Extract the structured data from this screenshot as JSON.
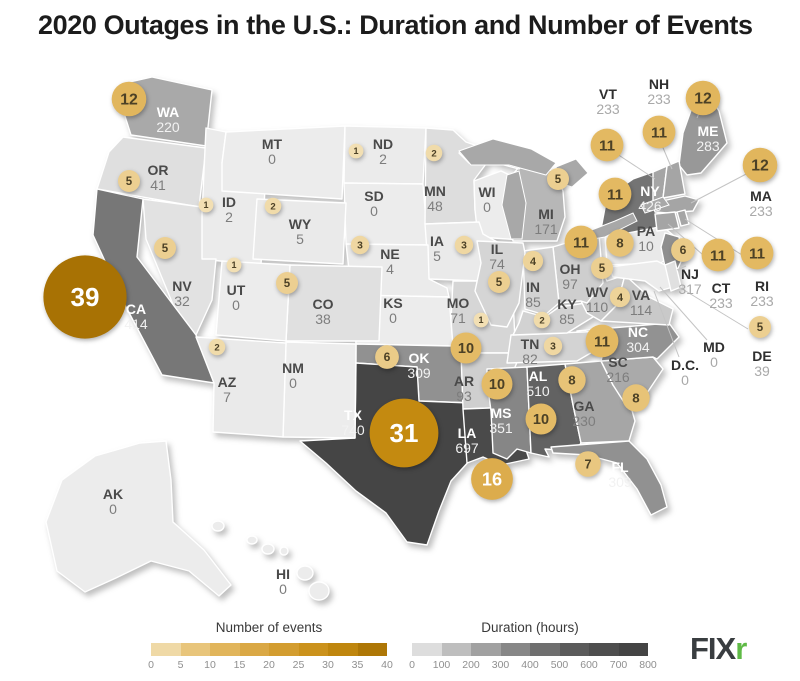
{
  "title": "2020 Outages in the U.S.: Duration and Number of Events",
  "logo": {
    "text_dark": "FIX",
    "text_green": "r",
    "green_color": "#5fba46",
    "dark_color": "#393d40"
  },
  "legends": {
    "events": {
      "title": "Number of events",
      "ticks": [
        "0",
        "5",
        "10",
        "15",
        "20",
        "25",
        "30",
        "35",
        "40"
      ],
      "max": 40
    },
    "duration": {
      "title": "Duration (hours)",
      "ticks": [
        "0",
        "100",
        "200",
        "300",
        "400",
        "500",
        "600",
        "700",
        "800"
      ],
      "max": 800
    }
  },
  "palette": {
    "background": "#ffffff",
    "title_color": "#1c1c1c",
    "lake": "#a8a8a8",
    "leader_line": "#c4c4c4",
    "label_abbr": {
      "dark": "#4a4a4a",
      "light": "#ffffff",
      "outside": "#2f2f2f"
    },
    "label_dur": {
      "dark": "#7d7d7d",
      "light": "#f2f2f2",
      "outside": "#a9a9a9"
    },
    "bubble_text_dark": "#4c4126",
    "bubble_text_light": "#ffffff",
    "duration_anchors": [
      [
        0,
        "#ececec"
      ],
      [
        100,
        "#cdcdcd"
      ],
      [
        200,
        "#aeaeae"
      ],
      [
        300,
        "#939393"
      ],
      [
        400,
        "#7a7a7a"
      ],
      [
        500,
        "#646464"
      ],
      [
        600,
        "#525252"
      ],
      [
        700,
        "#4a4a4a"
      ],
      [
        800,
        "#3e3e3e"
      ]
    ],
    "events_anchors": [
      [
        0,
        "#f3e3bb"
      ],
      [
        10,
        "#e4bb66"
      ],
      [
        20,
        "#d7a23a"
      ],
      [
        30,
        "#c78d12"
      ],
      [
        40,
        "#a56f02"
      ]
    ]
  },
  "chart_data": {
    "type": "choropleth-bubble-map",
    "region": "United States",
    "title": "2020 Outages in the U.S.: Duration and Number of Events",
    "bubble_variable": "Number of events",
    "fill_variable": "Duration (hours)",
    "events_axis_range": [
      0,
      40
    ],
    "duration_axis_range": [
      0,
      800
    ],
    "states": [
      {
        "id": "WA",
        "abbr": "WA",
        "duration_hours": 220,
        "events": 12,
        "label": [
          168,
          112
        ],
        "bubble": [
          129,
          99
        ],
        "text": "light"
      },
      {
        "id": "OR",
        "abbr": "OR",
        "duration_hours": 41,
        "events": 5,
        "label": [
          158,
          170
        ],
        "bubble": [
          129,
          181
        ],
        "text": "dark"
      },
      {
        "id": "CA",
        "abbr": "CA",
        "duration_hours": 414,
        "events": 39,
        "label": [
          136,
          309
        ],
        "bubble": [
          85,
          297
        ],
        "text": "light"
      },
      {
        "id": "NV",
        "abbr": "NV",
        "duration_hours": 32,
        "events": 5,
        "label": [
          182,
          286
        ],
        "bubble": [
          165,
          248
        ],
        "text": "dark"
      },
      {
        "id": "ID",
        "abbr": "ID",
        "duration_hours": 2,
        "events": 1,
        "label": [
          229,
          202
        ],
        "bubble": [
          206,
          205
        ],
        "text": "dark"
      },
      {
        "id": "MT",
        "abbr": "MT",
        "duration_hours": 0,
        "events": null,
        "label": [
          272,
          144
        ],
        "bubble": null,
        "text": "dark"
      },
      {
        "id": "WY",
        "abbr": "WY",
        "duration_hours": 5,
        "events": 2,
        "label": [
          300,
          224
        ],
        "bubble": [
          273,
          206
        ],
        "text": "dark"
      },
      {
        "id": "UT",
        "abbr": "UT",
        "duration_hours": 0,
        "events": 1,
        "label": [
          236,
          290
        ],
        "bubble": [
          234,
          265
        ],
        "text": "dark"
      },
      {
        "id": "CO",
        "abbr": "CO",
        "duration_hours": 38,
        "events": 5,
        "label": [
          323,
          304
        ],
        "bubble": [
          287,
          283
        ],
        "text": "dark"
      },
      {
        "id": "AZ",
        "abbr": "AZ",
        "duration_hours": 7,
        "events": 2,
        "label": [
          227,
          382
        ],
        "bubble": [
          217,
          347
        ],
        "text": "dark"
      },
      {
        "id": "NM",
        "abbr": "NM",
        "duration_hours": 0,
        "events": null,
        "label": [
          293,
          368
        ],
        "bubble": null,
        "text": "dark"
      },
      {
        "id": "ND",
        "abbr": "ND",
        "duration_hours": 2,
        "events": 1,
        "label": [
          383,
          144
        ],
        "bubble": [
          356,
          151
        ],
        "text": "dark"
      },
      {
        "id": "SD",
        "abbr": "SD",
        "duration_hours": 0,
        "events": null,
        "label": [
          374,
          196
        ],
        "bubble": null,
        "text": "dark"
      },
      {
        "id": "NE",
        "abbr": "NE",
        "duration_hours": 4,
        "events": 3,
        "label": [
          390,
          254
        ],
        "bubble": [
          360,
          245
        ],
        "text": "dark"
      },
      {
        "id": "KS",
        "abbr": "KS",
        "duration_hours": 0,
        "events": null,
        "label": [
          393,
          303
        ],
        "bubble": null,
        "text": "dark"
      },
      {
        "id": "OK",
        "abbr": "OK",
        "duration_hours": 309,
        "events": 6,
        "label": [
          419,
          358
        ],
        "bubble": [
          387,
          357
        ],
        "text": "light"
      },
      {
        "id": "TX",
        "abbr": "TX",
        "duration_hours": 740,
        "events": 31,
        "label": [
          353,
          415
        ],
        "bubble": [
          404,
          433
        ],
        "text": "light"
      },
      {
        "id": "MN",
        "abbr": "MN",
        "duration_hours": 48,
        "events": 2,
        "label": [
          435,
          191
        ],
        "bubble": [
          434,
          153
        ],
        "text": "dark"
      },
      {
        "id": "IA",
        "abbr": "IA",
        "duration_hours": 5,
        "events": 3,
        "label": [
          437,
          241
        ],
        "bubble": [
          464,
          245
        ],
        "text": "dark"
      },
      {
        "id": "MO",
        "abbr": "MO",
        "duration_hours": 71,
        "events": 1,
        "label": [
          458,
          303
        ],
        "bubble": [
          481,
          320
        ],
        "text": "dark"
      },
      {
        "id": "AR",
        "abbr": "AR",
        "duration_hours": 93,
        "events": 10,
        "label": [
          464,
          381
        ],
        "bubble": [
          466,
          348
        ],
        "text": "dark"
      },
      {
        "id": "LA",
        "abbr": "LA",
        "duration_hours": 697,
        "events": 16,
        "label": [
          467,
          433
        ],
        "bubble": [
          492,
          479
        ],
        "text": "light"
      },
      {
        "id": "WI",
        "abbr": "WI",
        "duration_hours": 0,
        "events": null,
        "label": [
          487,
          192
        ],
        "bubble": null,
        "text": "dark"
      },
      {
        "id": "IL",
        "abbr": "IL",
        "duration_hours": 74,
        "events": 5,
        "label": [
          497,
          249
        ],
        "bubble": [
          499,
          282
        ],
        "text": "dark"
      },
      {
        "id": "MS",
        "abbr": "MS",
        "duration_hours": 351,
        "events": 10,
        "label": [
          501,
          413
        ],
        "bubble": [
          497,
          384
        ],
        "text": "light"
      },
      {
        "id": "MI",
        "abbr": "MI",
        "duration_hours": 171,
        "events": 5,
        "label": [
          546,
          214
        ],
        "bubble": [
          558,
          179
        ],
        "text": "dark"
      },
      {
        "id": "IN",
        "abbr": "IN",
        "duration_hours": 85,
        "events": 4,
        "label": [
          533,
          287
        ],
        "bubble": [
          533,
          261
        ],
        "text": "dark"
      },
      {
        "id": "OH",
        "abbr": "OH",
        "duration_hours": 97,
        "events": 11,
        "label": [
          570,
          269
        ],
        "bubble": [
          581,
          242
        ],
        "text": "dark"
      },
      {
        "id": "KY",
        "abbr": "KY",
        "duration_hours": 85,
        "events": 2,
        "label": [
          567,
          304
        ],
        "bubble": [
          542,
          320
        ],
        "text": "dark"
      },
      {
        "id": "TN",
        "abbr": "TN",
        "duration_hours": 82,
        "events": 3,
        "label": [
          530,
          344
        ],
        "bubble": [
          553,
          346
        ],
        "text": "dark"
      },
      {
        "id": "WV",
        "abbr": "WV",
        "duration_hours": 110,
        "events": 5,
        "label": [
          597,
          292
        ],
        "bubble": [
          602,
          268
        ],
        "text": "dark"
      },
      {
        "id": "VA",
        "abbr": "VA",
        "duration_hours": 114,
        "events": 4,
        "label": [
          641,
          295
        ],
        "bubble": [
          620,
          297
        ],
        "text": "dark"
      },
      {
        "id": "NC",
        "abbr": "NC",
        "duration_hours": 304,
        "events": 11,
        "label": [
          638,
          332
        ],
        "bubble": [
          602,
          341
        ],
        "text": "light"
      },
      {
        "id": "SC",
        "abbr": "SC",
        "duration_hours": 216,
        "events": 8,
        "label": [
          618,
          362
        ],
        "bubble": [
          636,
          398
        ],
        "text": "dark"
      },
      {
        "id": "GA",
        "abbr": "GA",
        "duration_hours": 230,
        "events": 8,
        "label": [
          584,
          406
        ],
        "bubble": [
          572,
          380
        ],
        "text": "dark"
      },
      {
        "id": "AL",
        "abbr": "AL",
        "duration_hours": 510,
        "events": 10,
        "label": [
          538,
          376
        ],
        "bubble": [
          541,
          419
        ],
        "text": "light"
      },
      {
        "id": "FL",
        "abbr": "FL",
        "duration_hours": 309,
        "events": 7,
        "label": [
          620,
          467
        ],
        "bubble": [
          588,
          464
        ],
        "text": "light"
      },
      {
        "id": "PA",
        "abbr": "PA",
        "duration_hours": 10,
        "events": 8,
        "label": [
          646,
          231
        ],
        "bubble": [
          620,
          243
        ],
        "text": "dark"
      },
      {
        "id": "NY",
        "abbr": "NY",
        "duration_hours": 426,
        "events": 11,
        "label": [
          650,
          191
        ],
        "bubble": [
          615,
          194
        ],
        "text": "light"
      },
      {
        "id": "NJ",
        "abbr": "NJ",
        "duration_hours": 317,
        "events": 6,
        "label": [
          690,
          274
        ],
        "bubble": [
          683,
          250
        ],
        "text": "outside"
      },
      {
        "id": "CT",
        "abbr": "CT",
        "duration_hours": 233,
        "events": 11,
        "label": [
          721,
          288
        ],
        "bubble": [
          718,
          255
        ],
        "text": "outside"
      },
      {
        "id": "RI",
        "abbr": "RI",
        "duration_hours": 233,
        "events": 11,
        "label": [
          762,
          286
        ],
        "bubble": [
          757,
          253
        ],
        "text": "outside"
      },
      {
        "id": "DE",
        "abbr": "DE",
        "duration_hours": 39,
        "events": 5,
        "label": [
          762,
          356
        ],
        "bubble": [
          760,
          327
        ],
        "text": "outside"
      },
      {
        "id": "MD",
        "abbr": "MD",
        "duration_hours": 0,
        "events": null,
        "label": [
          714,
          347
        ],
        "bubble": null,
        "text": "outside"
      },
      {
        "id": "DC",
        "abbr": "D.C.",
        "duration_hours": 0,
        "events": null,
        "label": [
          685,
          365
        ],
        "bubble": null,
        "text": "outside"
      },
      {
        "id": "VT",
        "abbr": "VT",
        "duration_hours": 233,
        "events": 11,
        "label": [
          608,
          94
        ],
        "bubble": [
          607,
          145
        ],
        "text": "outside"
      },
      {
        "id": "NH",
        "abbr": "NH",
        "duration_hours": 233,
        "events": 11,
        "label": [
          659,
          84
        ],
        "bubble": [
          659,
          132
        ],
        "text": "outside"
      },
      {
        "id": "ME",
        "abbr": "ME",
        "duration_hours": 283,
        "events": 12,
        "label": [
          708,
          131
        ],
        "bubble": [
          703,
          98
        ],
        "text": "light"
      },
      {
        "id": "MA",
        "abbr": "MA",
        "duration_hours": 233,
        "events": 12,
        "label": [
          761,
          196
        ],
        "bubble": [
          760,
          165
        ],
        "text": "outside"
      },
      {
        "id": "AK",
        "abbr": "AK",
        "duration_hours": 0,
        "events": null,
        "label": [
          113,
          494
        ],
        "bubble": null,
        "text": "dark"
      },
      {
        "id": "HI",
        "abbr": "HI",
        "duration_hours": 0,
        "events": null,
        "label": [
          283,
          574
        ],
        "bubble": null,
        "text": "dark"
      }
    ]
  }
}
